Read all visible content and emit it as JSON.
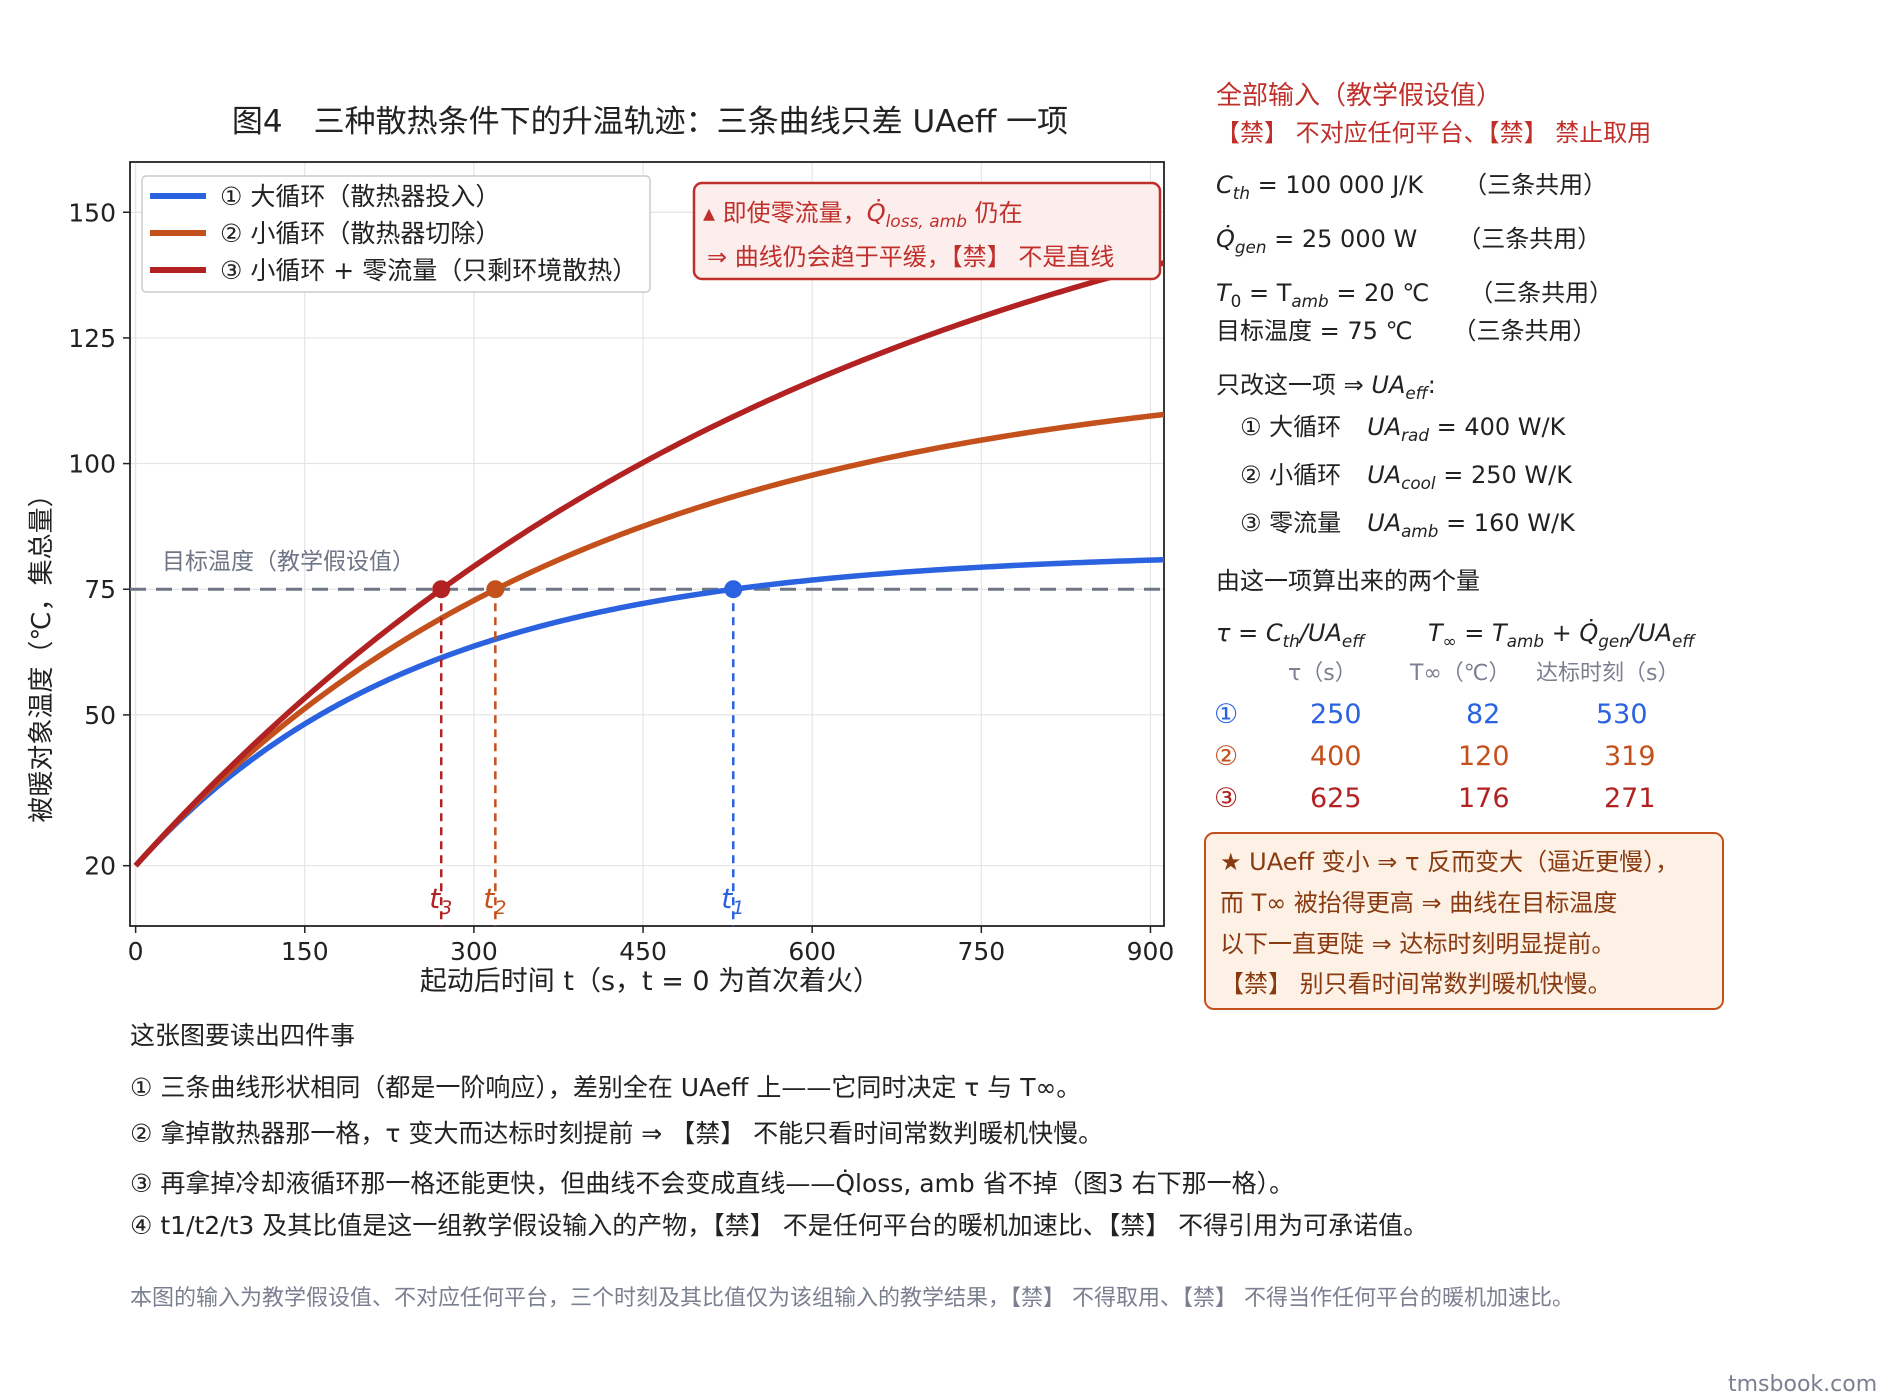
{
  "chart_data": {
    "type": "line",
    "title": "图4　三种散热条件下的升温轨迹：三条曲线只差 UAeff 一项",
    "xlabel": "起动后时间 t（s，t = 0 为首次着火）",
    "ylabel": "被暖对象温度（℃，集总量）",
    "xlim": [
      -5,
      912
    ],
    "ylim": [
      8,
      160
    ],
    "xticks": [
      0,
      150,
      300,
      450,
      600,
      750,
      900
    ],
    "yticks": [
      20,
      50,
      75,
      100,
      125,
      150
    ],
    "grid": true,
    "legend_position": "top-left",
    "series": [
      {
        "name": "① 大循环（散热器投入）",
        "color": "#2a62e0",
        "T0": 20,
        "tau": 250,
        "Tinf": 82.5,
        "t_hit": 530
      },
      {
        "name": "② 小循环（散热器切除）",
        "color": "#c4501c",
        "T0": 20,
        "tau": 400,
        "Tinf": 120,
        "t_hit": 319
      },
      {
        "name": "③ 小循环 + 零流量（只剩环境散热）",
        "color": "#b22222",
        "T0": 20,
        "tau": 625,
        "Tinf": 176.25,
        "t_hit": 271
      }
    ],
    "target": {
      "value": 75,
      "label": "目标温度（教学假设值）",
      "color": "#6e7585"
    },
    "markers": [
      {
        "label": "t1",
        "main": "t",
        "sub": "1",
        "x": 530,
        "color": "#2a62e0"
      },
      {
        "label": "t2",
        "main": "t",
        "sub": "2",
        "x": 319,
        "color": "#c4501c"
      },
      {
        "label": "t3",
        "main": "t",
        "sub": "3",
        "x": 271,
        "color": "#b22222"
      }
    ]
  },
  "chart_note": {
    "line1_prefix": "▴ 即使零流量，",
    "line1_sym": "Q̇",
    "line1_sub": "loss, amb",
    "line1_suffix": " 仍在",
    "line2": "⇒  曲线仍会趋于平缓，【禁】 不是直线"
  },
  "panel": {
    "title": "全部输入（教学假设值）",
    "warning": "【禁】 不对应任何平台、【禁】 禁止取用",
    "inputs": [
      {
        "sym": "C",
        "sub": "th",
        "value": " = 100 000 J/K",
        "note": "（三条共用）"
      },
      {
        "sym": "Q̇",
        "sub": "gen",
        "value": " = 25 000 W",
        "note": "（三条共用）"
      },
      {
        "sym": "T",
        "sub": "0",
        "value": " = T",
        "sub2": "amb",
        "value2": " = 20 ℃",
        "note": "（三条共用）"
      }
    ],
    "target_line": "目标温度 = 75 ℃",
    "target_note": "（三条共用）",
    "only_change_prefix": "只改这一项 ⇒ ",
    "only_change_sym": "UA",
    "only_change_sub": "eff",
    "only_change_suffix": ":",
    "cases": [
      {
        "label": "① 大循环",
        "sym": "UA",
        "sub": "rad",
        "value": " = 400 W/K"
      },
      {
        "label": "② 小循环",
        "sym": "UA",
        "sub": "cool",
        "value": " = 250 W/K"
      },
      {
        "label": "③ 零流量",
        "sym": "UA",
        "sub": "amb",
        "value": " = 160 W/K"
      }
    ],
    "derived_title": "由这一项算出来的两个量",
    "formula1": "τ = C",
    "formula1_sub": "th",
    "formula1_mid": "/UA",
    "formula1_sub2": "eff",
    "formula2": "T",
    "formula2_sub": "∞",
    "formula2_mid": " = T",
    "formula2_sub2": "amb",
    "formula2_mid2": " + Q̇",
    "formula2_sub3": "gen",
    "formula2_mid3": "/UA",
    "formula2_sub4": "eff",
    "table_headers": [
      "τ（s）",
      "T∞（℃）",
      "达标时刻（s）"
    ],
    "table_rows": [
      {
        "label": "①",
        "tau": "250",
        "tinf": "82",
        "t": "530",
        "color": "#2a62e0"
      },
      {
        "label": "②",
        "tau": "400",
        "tinf": "120",
        "t": "319",
        "color": "#c4501c"
      },
      {
        "label": "③",
        "tau": "625",
        "tinf": "176",
        "t": "271",
        "color": "#b22222"
      }
    ]
  },
  "insight": {
    "line1": "★ UAeff 变小 ⇒ τ 反而变大（逼近更慢），",
    "line2": "而 T∞ 被抬得更高 ⇒ 曲线在目标温度",
    "line3": "以下一直更陡 ⇒ 达标时刻明显提前。",
    "line4": "【禁】 别只看时间常数判暖机快慢。"
  },
  "reading": {
    "title": "这张图要读出四件事",
    "items": [
      "① 三条曲线形状相同（都是一阶响应），差别全在 UAeff 上——它同时决定 τ 与 T∞。",
      "② 拿掉散热器那一格，τ 变大而达标时刻提前 ⇒ 【禁】 不能只看时间常数判暖机快慢。",
      "③ 再拿掉冷却液循环那一格还能更快，但曲线不会变成直线——Q̇loss, amb 省不掉（图3 右下那一格）。",
      "④ t1/t2/t3 及其比值是这一组教学假设输入的产物，【禁】 不是任何平台的暖机加速比、【禁】 不得引用为可承诺值。"
    ]
  },
  "footnote": "本图的输入为教学假设值、不对应任何平台，三个时刻及其比值仅为该组输入的教学结果，【禁】 不得取用、【禁】 不得当作任何平台的暖机加速比。",
  "watermark": "tmsbook.com"
}
